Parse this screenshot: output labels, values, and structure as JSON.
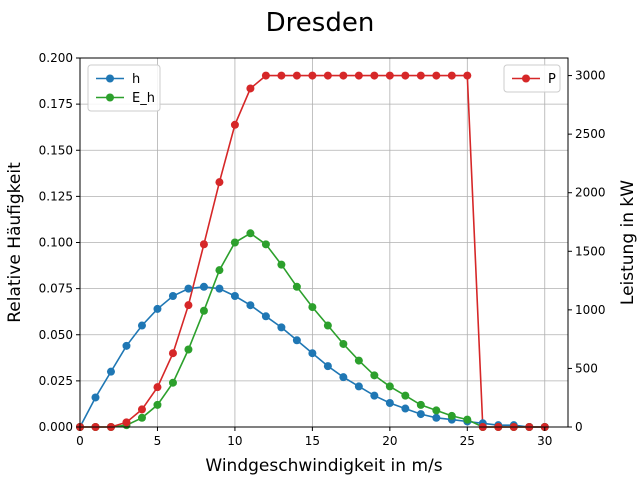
{
  "chart_data": {
    "type": "line",
    "title": "Dresden",
    "xlabel": "Windgeschwindigkeit in m/s",
    "ylabel_left": "Relative Häufigkeit",
    "ylabel_right": "Leistung in kW",
    "xlim": [
      0,
      31.5
    ],
    "ylim_left": [
      0,
      0.2
    ],
    "ylim_right": [
      0,
      3150
    ],
    "x_ticks": [
      "0",
      "5",
      "10",
      "15",
      "20",
      "25",
      "30"
    ],
    "y_left_ticks": [
      "0.000",
      "0.025",
      "0.050",
      "0.075",
      "0.100",
      "0.125",
      "0.150",
      "0.175",
      "0.200"
    ],
    "y_right_ticks": [
      "0",
      "500",
      "1000",
      "1500",
      "2000",
      "2500",
      "3000"
    ],
    "grid": true,
    "legend_left_position": "top-left",
    "legend_right_position": "top-right",
    "x": [
      0,
      1,
      2,
      3,
      4,
      5,
      6,
      7,
      8,
      9,
      10,
      11,
      12,
      13,
      14,
      15,
      16,
      17,
      18,
      19,
      20,
      21,
      22,
      23,
      24,
      25,
      26,
      27,
      28,
      29,
      30
    ],
    "series": [
      {
        "name": "h",
        "axis": "left",
        "color": "#1f77b4",
        "values": [
          0.0,
          0.016,
          0.03,
          0.044,
          0.055,
          0.064,
          0.071,
          0.075,
          0.076,
          0.075,
          0.071,
          0.066,
          0.06,
          0.054,
          0.047,
          0.04,
          0.033,
          0.027,
          0.022,
          0.017,
          0.013,
          0.01,
          0.007,
          0.005,
          0.004,
          0.003,
          0.002,
          0.001,
          0.001,
          0.0,
          0.0
        ]
      },
      {
        "name": "E_h",
        "axis": "left",
        "color": "#2ca02c",
        "values": [
          0.0,
          0.0,
          0.0,
          0.001,
          0.005,
          0.012,
          0.024,
          0.042,
          0.063,
          0.085,
          0.1,
          0.105,
          0.099,
          0.088,
          0.076,
          0.065,
          0.055,
          0.045,
          0.036,
          0.028,
          0.022,
          0.017,
          0.012,
          0.009,
          0.006,
          0.004,
          0.0,
          0.0,
          0.0,
          0.0,
          0.0
        ]
      },
      {
        "name": "P",
        "axis": "right",
        "color": "#d62728",
        "values": [
          0,
          0,
          0,
          40,
          150,
          340,
          630,
          1040,
          1560,
          2090,
          2580,
          2890,
          3000,
          3000,
          3000,
          3000,
          3000,
          3000,
          3000,
          3000,
          3000,
          3000,
          3000,
          3000,
          3000,
          3000,
          0,
          0,
          0,
          0,
          0
        ]
      }
    ]
  }
}
